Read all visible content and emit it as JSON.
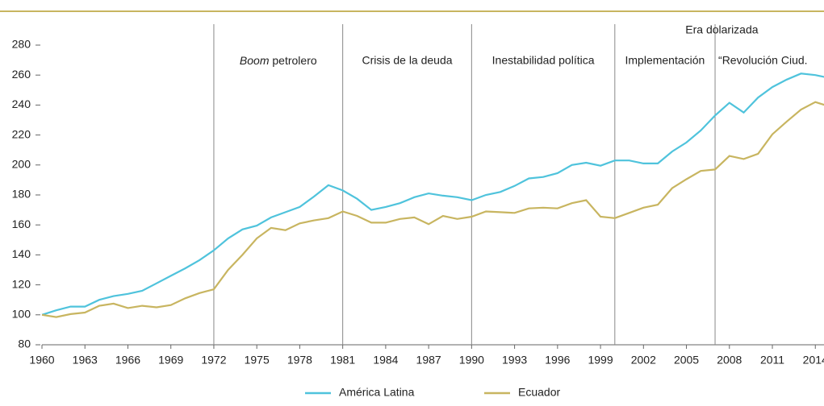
{
  "chart_data": {
    "type": "line",
    "x": [
      1960,
      1961,
      1962,
      1963,
      1964,
      1965,
      1966,
      1967,
      1968,
      1969,
      1970,
      1971,
      1972,
      1973,
      1974,
      1975,
      1976,
      1977,
      1978,
      1979,
      1980,
      1981,
      1982,
      1983,
      1984,
      1985,
      1986,
      1987,
      1988,
      1989,
      1990,
      1991,
      1992,
      1993,
      1994,
      1995,
      1996,
      1997,
      1998,
      1999,
      2000,
      2001,
      2002,
      2003,
      2004,
      2005,
      2006,
      2007,
      2008,
      2009,
      2010,
      2011,
      2012,
      2013,
      2014,
      2015
    ],
    "series": [
      {
        "name": "América Latina",
        "color": "#4fc3dc",
        "values": [
          100,
          103,
          105.5,
          105.5,
          110,
          112.5,
          114,
          116,
          121,
          126,
          131,
          136.5,
          143,
          151,
          157,
          159.5,
          165,
          168.5,
          172,
          179,
          186.5,
          183,
          177.5,
          170,
          172,
          174.5,
          178.5,
          181,
          179.5,
          178.5,
          176.5,
          180,
          182,
          186,
          191,
          192,
          194.5,
          200,
          201.5,
          199.5,
          203,
          203,
          201,
          201,
          209,
          215,
          223,
          233,
          241.5,
          235,
          245,
          252,
          257,
          261,
          260,
          258
        ]
      },
      {
        "name": "Ecuador",
        "color": "#c8b560",
        "values": [
          100,
          98.5,
          100.5,
          101.5,
          106,
          107.5,
          104.5,
          106,
          105,
          106.5,
          111,
          114.5,
          117,
          130,
          140,
          151,
          158,
          156.5,
          161,
          163,
          164.5,
          169,
          166,
          161.5,
          161.5,
          164,
          165,
          160.5,
          166,
          164,
          165.5,
          169,
          168.5,
          168,
          171,
          171.5,
          171,
          174.5,
          176.5,
          165.5,
          164.5,
          168,
          171.5,
          173.5,
          184.5,
          190.5,
          196,
          197,
          206,
          204,
          207.5,
          220.5,
          229,
          237,
          242,
          239
        ]
      }
    ],
    "xlim": [
      1960,
      2015
    ],
    "xticks": [
      1960,
      1963,
      1966,
      1969,
      1972,
      1975,
      1978,
      1981,
      1984,
      1987,
      1990,
      1993,
      1996,
      1999,
      2002,
      2005,
      2008,
      2011,
      2014
    ],
    "ylim": [
      80,
      280
    ],
    "yticks": [
      80,
      100,
      120,
      140,
      160,
      180,
      200,
      220,
      240,
      260,
      280
    ],
    "period_breaks": [
      1972,
      1981,
      1990,
      2000,
      2007
    ],
    "boom_emphasis": "Boom",
    "periods": [
      " petrolero",
      "Crisis de la deuda",
      "Inestabilidad política",
      "Implementación",
      "“Revolución Ciud."
    ],
    "era_label": "Era dolarizada"
  }
}
